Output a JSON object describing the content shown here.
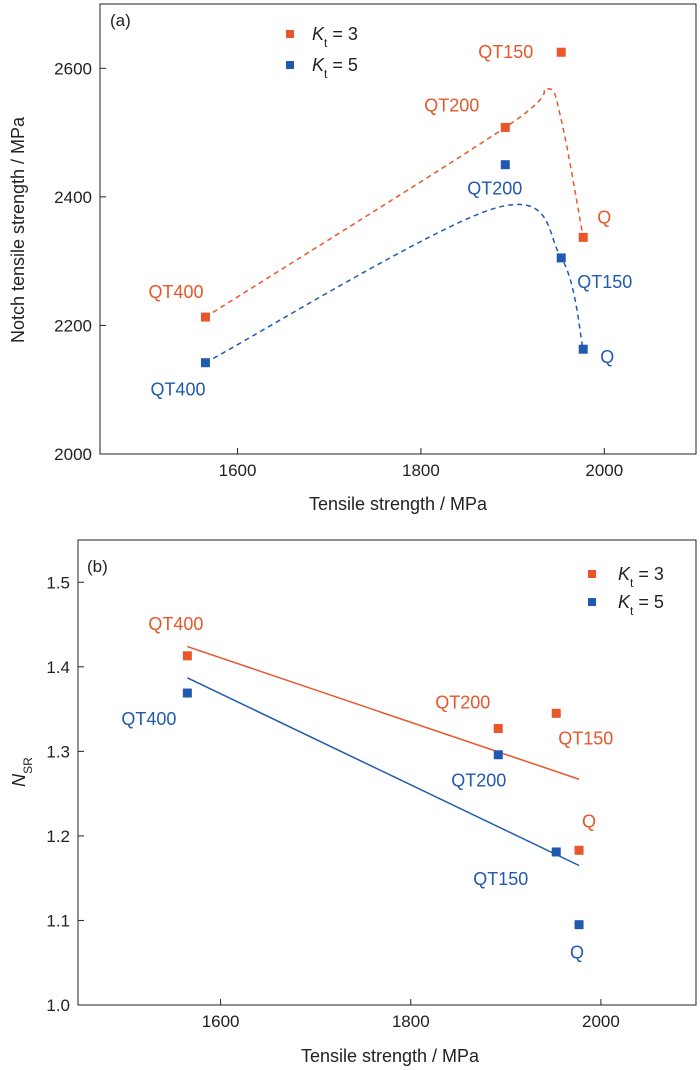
{
  "colors": {
    "kt3": "#E8562A",
    "kt5": "#1F5AAE",
    "axis": "#222222"
  },
  "chart_data": [
    {
      "type": "scatter",
      "panel_label": "(a)",
      "xlabel": "Tensile strength / MPa",
      "ylabel": "Notch tensile strength / MPa",
      "xlim": [
        1450,
        2100
      ],
      "ylim": [
        2000,
        2700
      ],
      "xticks": [
        1600,
        1800,
        2000
      ],
      "yticks": [
        2000,
        2200,
        2400,
        2600
      ],
      "legend_placement": "top-left",
      "fit": "dashed-curve",
      "series": [
        {
          "name": "Kt = 3",
          "name_base": "K",
          "name_sub": "t",
          "name_suffix": " = 3",
          "color_key": "kt3",
          "points": [
            {
              "label": "QT400",
              "x": 1565,
              "y": 2213
            },
            {
              "label": "QT200",
              "x": 1892,
              "y": 2508
            },
            {
              "label": "QT150",
              "x": 1953,
              "y": 2625
            },
            {
              "label": "Q",
              "x": 1977,
              "y": 2337
            }
          ],
          "curve": [
            [
              1565,
              2213
            ],
            [
              1892,
              2508
            ],
            [
              1937,
              2568
            ],
            [
              1953,
              2520
            ],
            [
              1977,
              2337
            ]
          ]
        },
        {
          "name": "Kt = 5",
          "name_base": "K",
          "name_sub": "t",
          "name_suffix": " = 5",
          "color_key": "kt5",
          "points": [
            {
              "label": "QT400",
              "x": 1565,
              "y": 2142
            },
            {
              "label": "QT200",
              "x": 1892,
              "y": 2450
            },
            {
              "label": "QT150",
              "x": 1953,
              "y": 2305
            },
            {
              "label": "Q",
              "x": 1977,
              "y": 2163
            }
          ],
          "curve": [
            [
              1565,
              2142
            ],
            [
              1880,
              2382
            ],
            [
              1953,
              2305
            ],
            [
              1977,
              2163
            ]
          ]
        }
      ]
    },
    {
      "type": "scatter",
      "panel_label": "(b)",
      "xlabel": "Tensile strength / MPa",
      "ylabel": "N_SR",
      "ylabel_base": "N",
      "ylabel_sub": "SR",
      "xlim": [
        1450,
        2100
      ],
      "ylim": [
        1.0,
        1.55
      ],
      "xticks": [
        1600,
        1800,
        2000
      ],
      "yticks": [
        1.0,
        1.1,
        1.2,
        1.3,
        1.4,
        1.5
      ],
      "legend_placement": "top-right",
      "fit": "linear",
      "series": [
        {
          "name": "Kt = 3",
          "name_base": "K",
          "name_sub": "t",
          "name_suffix": " = 3",
          "color_key": "kt3",
          "points": [
            {
              "label": "QT400",
              "x": 1565,
              "y": 1.413
            },
            {
              "label": "QT200",
              "x": 1892,
              "y": 1.327
            },
            {
              "label": "QT150",
              "x": 1953,
              "y": 1.345
            },
            {
              "label": "Q",
              "x": 1977,
              "y": 1.183
            }
          ],
          "fit_line": [
            [
              1565,
              1.424
            ],
            [
              1977,
              1.267
            ]
          ]
        },
        {
          "name": "Kt = 5",
          "name_base": "K",
          "name_sub": "t",
          "name_suffix": " = 5",
          "color_key": "kt5",
          "points": [
            {
              "label": "QT400",
              "x": 1565,
              "y": 1.369
            },
            {
              "label": "QT200",
              "x": 1892,
              "y": 1.296
            },
            {
              "label": "QT150",
              "x": 1953,
              "y": 1.181
            },
            {
              "label": "Q",
              "x": 1977,
              "y": 1.095
            }
          ],
          "fit_line": [
            [
              1565,
              1.387
            ],
            [
              1977,
              1.165
            ]
          ]
        }
      ]
    }
  ]
}
